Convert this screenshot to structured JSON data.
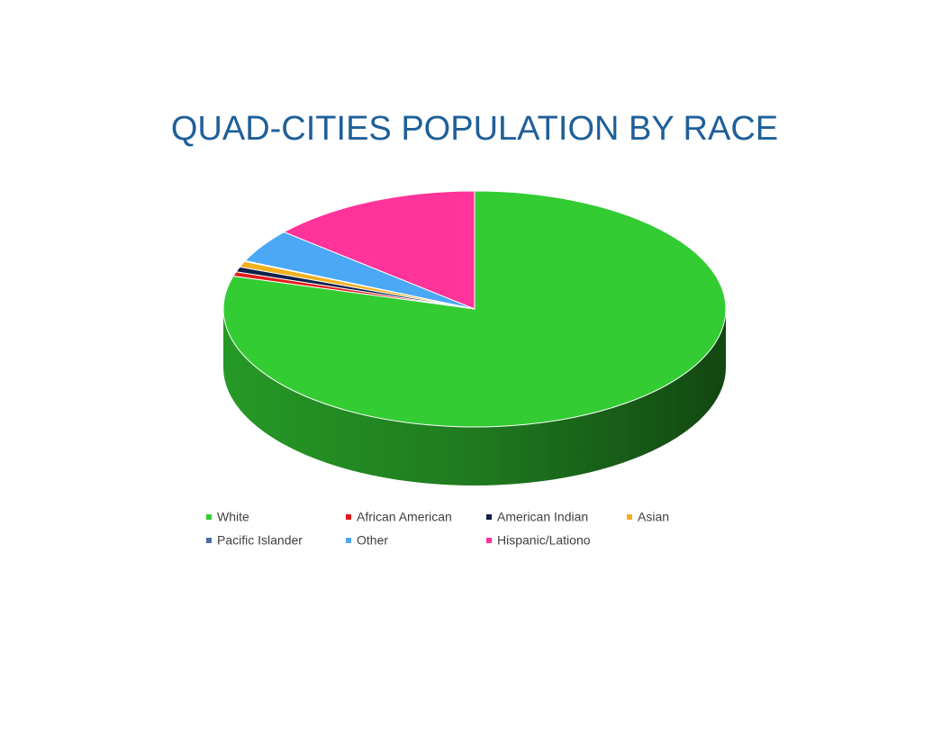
{
  "chart_data": {
    "type": "pie",
    "title": "QUAD-CITIES POPULATION BY RACE",
    "categories": [
      "White",
      "African American",
      "American Indian",
      "Asian",
      "Pacific Islander",
      "Other",
      "Hispanic/Lationo"
    ],
    "values": [
      79.5,
      0.6,
      0.7,
      0.8,
      0.1,
      4.6,
      13.7
    ],
    "colors": [
      "#33cc33",
      "#e31b1b",
      "#10204a",
      "#f2b01e",
      "#4a6fa5",
      "#4aa8f5",
      "#ff3399"
    ],
    "legend": "bottom"
  }
}
